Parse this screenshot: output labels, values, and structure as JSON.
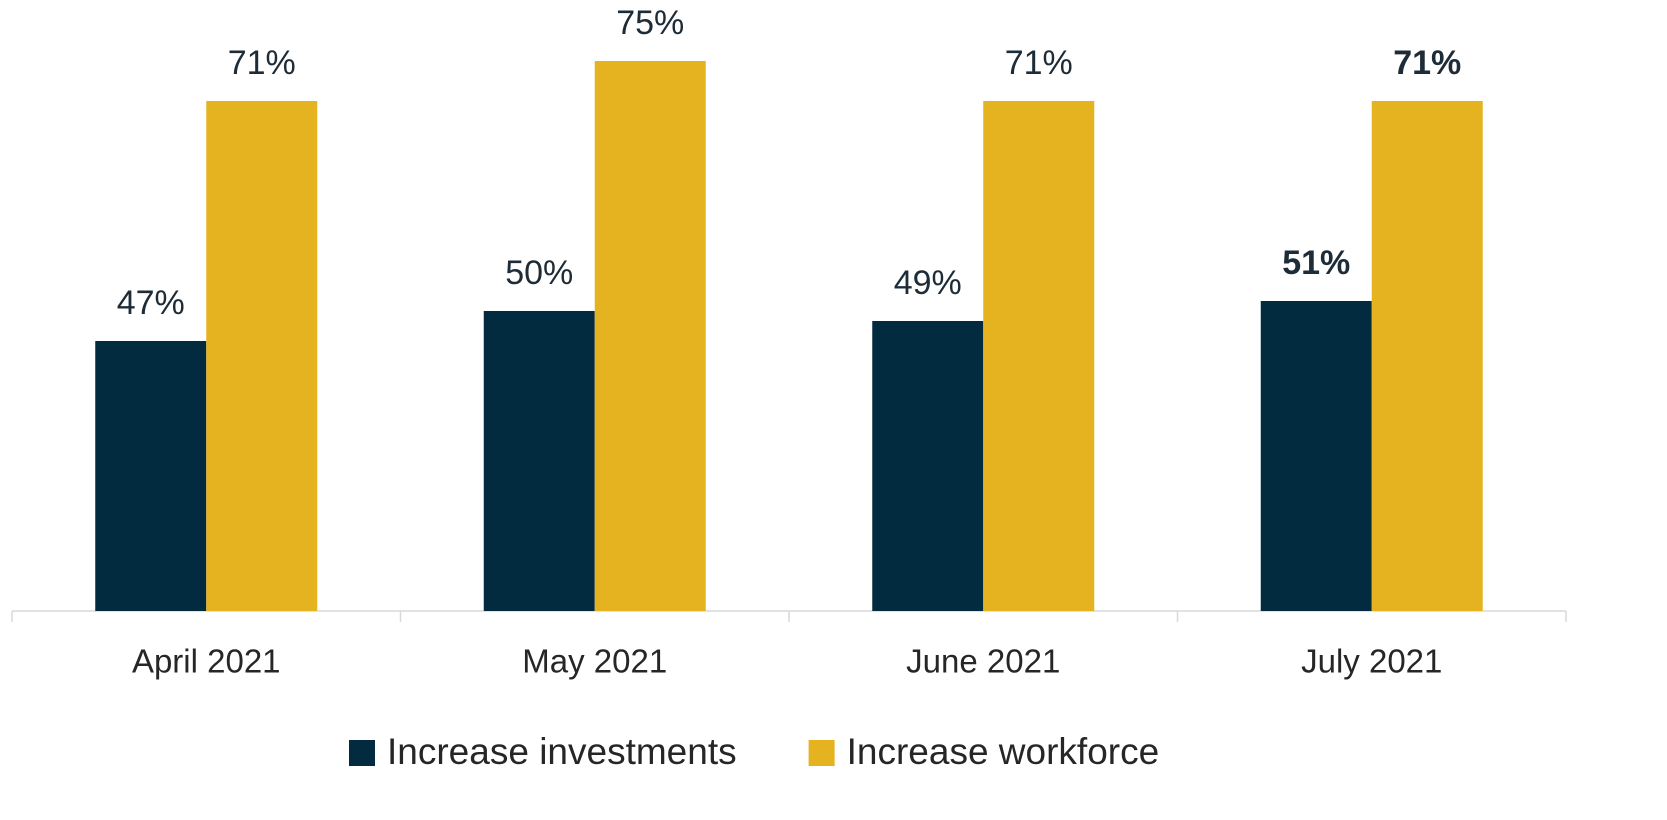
{
  "chart_data": {
    "type": "bar",
    "categories": [
      "April 2021",
      "May 2021",
      "June 2021",
      "July 2021"
    ],
    "series": [
      {
        "name": "Increase investments",
        "color": "#022b40",
        "values": [
          47,
          50,
          49,
          51
        ],
        "value_labels": [
          "47%",
          "50%",
          "49%",
          "51%"
        ]
      },
      {
        "name": "Increase workforce",
        "color": "#e6b320",
        "values": [
          71,
          75,
          71,
          71
        ],
        "value_labels": [
          "71%",
          "75%",
          "71%",
          "71%"
        ]
      }
    ],
    "ylim": [
      20,
      80
    ],
    "highlight_index": 3,
    "legend": "bottom",
    "grid": false
  }
}
